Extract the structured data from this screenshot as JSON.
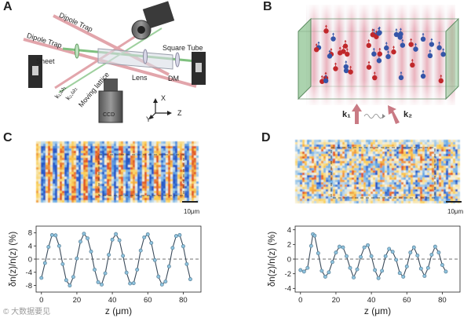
{
  "panels": {
    "a": {
      "letter": "A",
      "labels": {
        "dipole_trap_1": "Dipole Trap",
        "dipole_trap_2": "Dipole Trap",
        "square_tube": "Square Tube",
        "sheet": "Sheet",
        "lens": "Lens",
        "dm": "DM",
        "k1w1": "k₁,ω₁",
        "k2w2": "k₂,ω₂",
        "moving_lattice": "Moving lattice",
        "ccd": "CCD",
        "axis_x": "X",
        "axis_y": "Y",
        "axis_z": "Z"
      }
    },
    "b": {
      "letter": "B",
      "k1": "k₁",
      "k2": "k₂"
    },
    "c": {
      "letter": "C",
      "scale_bar": "10μm",
      "watermark": "© 大数据要见"
    },
    "d": {
      "letter": "D",
      "scale_bar": "10μm"
    }
  },
  "chart_data": [
    {
      "type": "line",
      "panel": "C",
      "xlabel": "z (μm)",
      "ylabel": "δn(z)/n(z) (%)",
      "xlim": [
        -3,
        90
      ],
      "ylim": [
        -10,
        10
      ],
      "xticks": [
        0,
        20,
        40,
        60,
        80
      ],
      "yticks": [
        8,
        4,
        0,
        -4,
        -8
      ],
      "baseline": 0,
      "amplitude": 7.6,
      "period": 15.6,
      "x_start": 0,
      "x_end": 84,
      "series": [
        {
          "values": [
            [
              0,
              -5.7
            ],
            [
              2,
              -1.2
            ],
            [
              4,
              3.7
            ],
            [
              6,
              7.3
            ],
            [
              8,
              7.2
            ],
            [
              10,
              4.0
            ],
            [
              12,
              -1.5
            ],
            [
              14,
              -6.4
            ],
            [
              16,
              -8.0
            ],
            [
              18,
              -5.4
            ],
            [
              20,
              0.2
            ],
            [
              22,
              5.3
            ],
            [
              24,
              7.7
            ],
            [
              26,
              6.3
            ],
            [
              28,
              2.3
            ],
            [
              30,
              -3.2
            ],
            [
              32,
              -7.0
            ],
            [
              34,
              -7.7
            ],
            [
              36,
              -4.3
            ],
            [
              38,
              1.3
            ],
            [
              40,
              5.9
            ],
            [
              42,
              7.6
            ],
            [
              44,
              5.7
            ],
            [
              46,
              1.0
            ],
            [
              48,
              -4.1
            ],
            [
              50,
              -7.4
            ],
            [
              52,
              -7.3
            ],
            [
              54,
              -3.2
            ],
            [
              56,
              2.6
            ],
            [
              58,
              6.6
            ],
            [
              60,
              7.5
            ],
            [
              62,
              4.9
            ],
            [
              64,
              -0.3
            ],
            [
              66,
              -5.3
            ],
            [
              68,
              -7.7
            ],
            [
              70,
              -6.8
            ],
            [
              72,
              -2.2
            ],
            [
              74,
              3.4
            ],
            [
              76,
              7.0
            ],
            [
              78,
              7.3
            ],
            [
              80,
              3.9
            ],
            [
              82,
              -1.5
            ],
            [
              84,
              -6.1
            ]
          ]
        }
      ]
    },
    {
      "type": "line",
      "panel": "D",
      "xlabel": "z (μm)",
      "ylabel": "δn(z)/n(z) (%)",
      "xlim": [
        -3,
        90
      ],
      "ylim": [
        -4.5,
        4.5
      ],
      "xticks": [
        0,
        20,
        40,
        60,
        80
      ],
      "yticks": [
        4,
        2,
        0,
        -2,
        -4
      ],
      "baseline": 0,
      "period": 11.2,
      "x_start": 0,
      "x_end": 82,
      "series": [
        {
          "values": [
            [
              0,
              -1.5
            ],
            [
              2,
              -1.7
            ],
            [
              4,
              -1.2
            ],
            [
              6,
              1.8
            ],
            [
              7,
              3.4
            ],
            [
              8,
              3.2
            ],
            [
              10,
              0.8
            ],
            [
              12,
              -1.6
            ],
            [
              14,
              -2.4
            ],
            [
              16,
              -1.8
            ],
            [
              18,
              -0.4
            ],
            [
              20,
              0.9
            ],
            [
              22,
              1.7
            ],
            [
              24,
              1.6
            ],
            [
              26,
              0.4
            ],
            [
              28,
              -1.2
            ],
            [
              30,
              -2.5
            ],
            [
              32,
              -1.4
            ],
            [
              34,
              0.3
            ],
            [
              36,
              1.6
            ],
            [
              38,
              1.9
            ],
            [
              40,
              0.4
            ],
            [
              42,
              -1.5
            ],
            [
              44,
              -2.6
            ],
            [
              46,
              -1.6
            ],
            [
              48,
              0.4
            ],
            [
              50,
              1.4
            ],
            [
              52,
              1.0
            ],
            [
              54,
              -0.1
            ],
            [
              56,
              -1.9
            ],
            [
              58,
              -2.4
            ],
            [
              60,
              -1.0
            ],
            [
              62,
              0.9
            ],
            [
              64,
              1.6
            ],
            [
              66,
              0.5
            ],
            [
              68,
              -1.3
            ],
            [
              70,
              -2.3
            ],
            [
              72,
              -1.2
            ],
            [
              74,
              0.6
            ],
            [
              76,
              1.7
            ],
            [
              78,
              0.9
            ],
            [
              80,
              -0.8
            ],
            [
              82,
              -1.7
            ]
          ]
        }
      ]
    }
  ],
  "colors": {
    "line": "#3a4a5a",
    "marker_fill": "#8ec3de",
    "marker_stroke": "#5a7f96",
    "baseline": "#444444",
    "blue_atom": "#3455a8",
    "red_atom": "#c0282b",
    "tube_green": "#8fc493",
    "lattice_pink": "#e7a6b3"
  }
}
